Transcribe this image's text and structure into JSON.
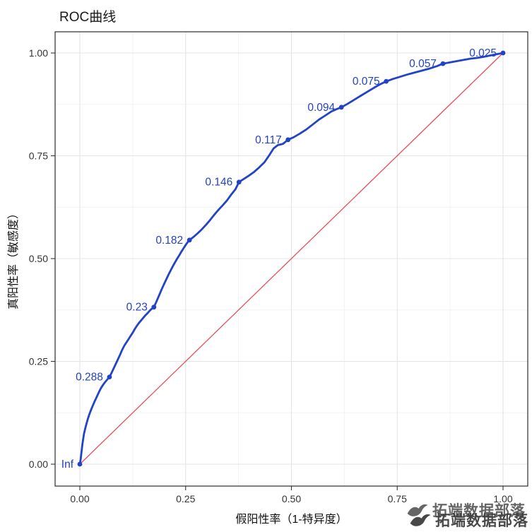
{
  "page": {
    "title": "ROC曲线"
  },
  "watermark": {
    "text": "拓端数据部落"
  },
  "chart_data": {
    "type": "line",
    "title": "ROC曲线",
    "xlabel": "假阳性率（1-特异度）",
    "ylabel": "真阳性率（敏感度）",
    "xlim": [
      0,
      1
    ],
    "ylim": [
      0,
      1
    ],
    "grid": true,
    "legend": "none",
    "xticks": [
      0,
      0.25,
      0.5,
      0.75,
      1.0
    ],
    "xtick_labels": [
      "0.00",
      "0.25",
      "0.50",
      "0.75",
      "1.00"
    ],
    "yticks": [
      0,
      0.25,
      0.5,
      0.75,
      1.0
    ],
    "ytick_labels": [
      "0.00",
      "0.25",
      "0.50",
      "0.75",
      "1.00"
    ],
    "minor_ticks": [
      0.125,
      0.375,
      0.625,
      0.875
    ],
    "colors": {
      "curve": "#2243C6",
      "reference": "#E74C5B",
      "grid_major": "#E4E4E4",
      "grid_minor": "#F2F2F2",
      "panel_border": "#2B2B2B",
      "tick_text": "#333333",
      "axis_text": "#111111"
    },
    "series": [
      {
        "name": "ROC",
        "color": "#2243C6",
        "points": [
          [
            0.0,
            0.0
          ],
          [
            0.002,
            0.012
          ],
          [
            0.004,
            0.03
          ],
          [
            0.006,
            0.048
          ],
          [
            0.008,
            0.062
          ],
          [
            0.01,
            0.075
          ],
          [
            0.014,
            0.092
          ],
          [
            0.018,
            0.107
          ],
          [
            0.022,
            0.12
          ],
          [
            0.026,
            0.131
          ],
          [
            0.03,
            0.141
          ],
          [
            0.035,
            0.153
          ],
          [
            0.04,
            0.164
          ],
          [
            0.045,
            0.175
          ],
          [
            0.05,
            0.185
          ],
          [
            0.055,
            0.193
          ],
          [
            0.06,
            0.2
          ],
          [
            0.065,
            0.206
          ],
          [
            0.07,
            0.212
          ],
          [
            0.075,
            0.222
          ],
          [
            0.08,
            0.233
          ],
          [
            0.085,
            0.244
          ],
          [
            0.09,
            0.255
          ],
          [
            0.095,
            0.266
          ],
          [
            0.1,
            0.278
          ],
          [
            0.105,
            0.288
          ],
          [
            0.11,
            0.296
          ],
          [
            0.115,
            0.304
          ],
          [
            0.12,
            0.312
          ],
          [
            0.125,
            0.32
          ],
          [
            0.13,
            0.329
          ],
          [
            0.135,
            0.337
          ],
          [
            0.14,
            0.344
          ],
          [
            0.145,
            0.35
          ],
          [
            0.15,
            0.356
          ],
          [
            0.155,
            0.362
          ],
          [
            0.16,
            0.367
          ],
          [
            0.165,
            0.373
          ],
          [
            0.17,
            0.378
          ],
          [
            0.175,
            0.382
          ],
          [
            0.18,
            0.393
          ],
          [
            0.185,
            0.405
          ],
          [
            0.19,
            0.417
          ],
          [
            0.195,
            0.429
          ],
          [
            0.2,
            0.44
          ],
          [
            0.205,
            0.451
          ],
          [
            0.21,
            0.462
          ],
          [
            0.215,
            0.472
          ],
          [
            0.22,
            0.482
          ],
          [
            0.225,
            0.491
          ],
          [
            0.23,
            0.5
          ],
          [
            0.235,
            0.508
          ],
          [
            0.24,
            0.517
          ],
          [
            0.245,
            0.525
          ],
          [
            0.25,
            0.533
          ],
          [
            0.255,
            0.54
          ],
          [
            0.259,
            0.545
          ],
          [
            0.268,
            0.552
          ],
          [
            0.278,
            0.561
          ],
          [
            0.288,
            0.571
          ],
          [
            0.298,
            0.582
          ],
          [
            0.308,
            0.594
          ],
          [
            0.318,
            0.607
          ],
          [
            0.328,
            0.619
          ],
          [
            0.338,
            0.63
          ],
          [
            0.348,
            0.642
          ],
          [
            0.358,
            0.656
          ],
          [
            0.368,
            0.669
          ],
          [
            0.376,
            0.686
          ],
          [
            0.388,
            0.694
          ],
          [
            0.4,
            0.702
          ],
          [
            0.412,
            0.711
          ],
          [
            0.424,
            0.722
          ],
          [
            0.436,
            0.734
          ],
          [
            0.448,
            0.752
          ],
          [
            0.458,
            0.768
          ],
          [
            0.468,
            0.776
          ],
          [
            0.48,
            0.779
          ],
          [
            0.492,
            0.789
          ],
          [
            0.505,
            0.795
          ],
          [
            0.52,
            0.804
          ],
          [
            0.535,
            0.814
          ],
          [
            0.55,
            0.826
          ],
          [
            0.565,
            0.838
          ],
          [
            0.58,
            0.848
          ],
          [
            0.595,
            0.858
          ],
          [
            0.606,
            0.863
          ],
          [
            0.618,
            0.868
          ],
          [
            0.632,
            0.876
          ],
          [
            0.648,
            0.886
          ],
          [
            0.664,
            0.896
          ],
          [
            0.68,
            0.906
          ],
          [
            0.696,
            0.916
          ],
          [
            0.71,
            0.924
          ],
          [
            0.724,
            0.931
          ],
          [
            0.74,
            0.937
          ],
          [
            0.756,
            0.942
          ],
          [
            0.772,
            0.947
          ],
          [
            0.79,
            0.952
          ],
          [
            0.808,
            0.957
          ],
          [
            0.826,
            0.962
          ],
          [
            0.844,
            0.968
          ],
          [
            0.858,
            0.974
          ],
          [
            0.874,
            0.977
          ],
          [
            0.89,
            0.98
          ],
          [
            0.906,
            0.983
          ],
          [
            0.922,
            0.986
          ],
          [
            0.938,
            0.988
          ],
          [
            0.956,
            0.991
          ],
          [
            0.975,
            0.995
          ],
          [
            1.0,
            1.0
          ]
        ]
      },
      {
        "name": "reference",
        "color": "#E74C5B",
        "points": [
          [
            0,
            0
          ],
          [
            1,
            1
          ]
        ]
      }
    ],
    "threshold_points": [
      {
        "label": "Inf",
        "x": 0.0,
        "y": 0.0
      },
      {
        "label": "0.288",
        "x": 0.07,
        "y": 0.212
      },
      {
        "label": "0.23",
        "x": 0.175,
        "y": 0.382
      },
      {
        "label": "0.182",
        "x": 0.259,
        "y": 0.545
      },
      {
        "label": "0.146",
        "x": 0.376,
        "y": 0.686
      },
      {
        "label": "0.117",
        "x": 0.492,
        "y": 0.789
      },
      {
        "label": "0.094",
        "x": 0.618,
        "y": 0.868
      },
      {
        "label": "0.075",
        "x": 0.724,
        "y": 0.931
      },
      {
        "label": "0.057",
        "x": 0.858,
        "y": 0.974
      },
      {
        "label": "0.025",
        "x": 1.0,
        "y": 1.0
      }
    ]
  }
}
